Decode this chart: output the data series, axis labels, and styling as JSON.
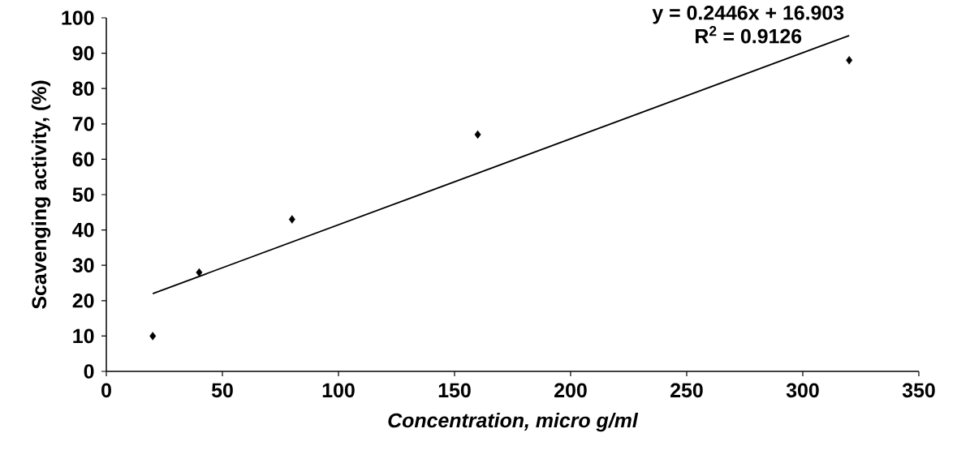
{
  "chart_data": {
    "type": "scatter",
    "xlabel": "Concentration, micro g/ml",
    "ylabel": "Scavenging activity, (%)",
    "series": [
      {
        "type": "scatter",
        "color": "#000000",
        "marker": "diamond",
        "x": [
          20,
          40,
          80,
          160,
          320
        ],
        "values": [
          10,
          28,
          43,
          67,
          88
        ]
      },
      {
        "type": "line",
        "color": "#000000",
        "marker": "none",
        "line_style": "solid",
        "x": [
          20,
          320
        ],
        "values": [
          22,
          95
        ]
      }
    ],
    "annotations": [
      "y = 0.2446x + 16.903",
      "R$^{2}$ = 0.9126"
    ],
    "xlim": [
      0,
      350
    ],
    "xticks": [
      0,
      50,
      100,
      150,
      200,
      250,
      300,
      350
    ],
    "ylim": [
      0,
      100
    ],
    "yticks": [
      0,
      10,
      20,
      30,
      40,
      50,
      60,
      70,
      80,
      90,
      100
    ]
  }
}
